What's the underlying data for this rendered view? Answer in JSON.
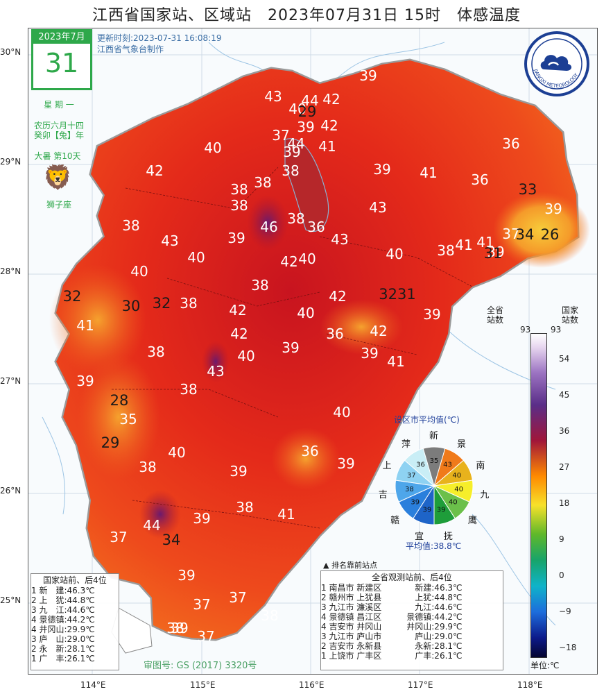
{
  "title": "江西省国家站、区域站　2023年07月31日 15时　体感温度",
  "update_time": "更新时刻:2023-07-31 16:08:19",
  "producer": "江西省气象台制作",
  "calendar": {
    "month": "2023年7月",
    "day": "31",
    "weekday": "星 期 一",
    "lunar1": "农历六月十四",
    "lunar2": "癸卯【兔】年",
    "solar_term": "大暑 第10天",
    "zodiac": "狮子座"
  },
  "logo_text": "JIANGXI METEOROLOGY",
  "lat_labels": [
    "30°N",
    "29°N",
    "28°N",
    "27°N",
    "26°N",
    "25°N"
  ],
  "lon_labels": [
    "114°E",
    "115°E",
    "116°E",
    "117°E",
    "118°E"
  ],
  "values": [
    {
      "v": "39",
      "c": "w"
    },
    {
      "v": "43",
      "c": "w"
    },
    {
      "v": "40",
      "c": "w"
    },
    {
      "v": "44",
      "c": "w"
    },
    {
      "v": "42",
      "c": "w"
    },
    {
      "v": "29",
      "c": "d"
    },
    {
      "v": "37",
      "c": "w"
    },
    {
      "v": "39",
      "c": "w"
    },
    {
      "v": "42",
      "c": "w"
    },
    {
      "v": "44",
      "c": "w"
    },
    {
      "v": "36",
      "c": "w"
    },
    {
      "v": "40",
      "c": "w"
    },
    {
      "v": "39",
      "c": "w"
    },
    {
      "v": "41",
      "c": "w"
    },
    {
      "v": "42",
      "c": "w"
    },
    {
      "v": "38",
      "c": "w"
    },
    {
      "v": "39",
      "c": "w"
    },
    {
      "v": "41",
      "c": "w"
    },
    {
      "v": "36",
      "c": "w"
    },
    {
      "v": "33",
      "c": "d"
    },
    {
      "v": "38",
      "c": "w"
    },
    {
      "v": "38",
      "c": "w"
    },
    {
      "v": "38",
      "c": "w"
    },
    {
      "v": "43",
      "c": "w"
    },
    {
      "v": "39",
      "c": "w"
    },
    {
      "v": "38",
      "c": "w"
    },
    {
      "v": "43",
      "c": "w"
    },
    {
      "v": "46",
      "c": "w"
    },
    {
      "v": "38",
      "c": "w"
    },
    {
      "v": "36",
      "c": "w"
    },
    {
      "v": "43",
      "c": "w"
    },
    {
      "v": "37",
      "c": "w"
    },
    {
      "v": "39",
      "c": "w"
    },
    {
      "v": "34",
      "c": "d"
    },
    {
      "v": "26",
      "c": "d"
    },
    {
      "v": "40",
      "c": "w"
    },
    {
      "v": "41",
      "c": "w"
    },
    {
      "v": "40",
      "c": "w"
    },
    {
      "v": "38",
      "c": "w"
    },
    {
      "v": "41",
      "c": "w"
    },
    {
      "v": "39",
      "c": "w"
    },
    {
      "v": "31",
      "c": "d"
    },
    {
      "v": "40",
      "c": "w"
    },
    {
      "v": "42",
      "c": "w"
    },
    {
      "v": "42",
      "c": "w"
    },
    {
      "v": "40",
      "c": "w"
    },
    {
      "v": "30",
      "c": "d"
    },
    {
      "v": "32",
      "c": "d"
    },
    {
      "v": "38",
      "c": "w"
    },
    {
      "v": "38",
      "c": "w"
    },
    {
      "v": "42",
      "c": "w"
    },
    {
      "v": "41",
      "c": "w"
    },
    {
      "v": "32",
      "c": "d"
    },
    {
      "v": "3231",
      "c": "d"
    },
    {
      "v": "42",
      "c": "w"
    },
    {
      "v": "40",
      "c": "w"
    },
    {
      "v": "36",
      "c": "w"
    },
    {
      "v": "39",
      "c": "w"
    },
    {
      "v": "38",
      "c": "w"
    },
    {
      "v": "42",
      "c": "w"
    },
    {
      "v": "40",
      "c": "w"
    },
    {
      "v": "39",
      "c": "w"
    },
    {
      "v": "41",
      "c": "w"
    },
    {
      "v": "39",
      "c": "w"
    },
    {
      "v": "43",
      "c": "w"
    },
    {
      "v": "39",
      "c": "w"
    },
    {
      "v": "28",
      "c": "d"
    },
    {
      "v": "38",
      "c": "w"
    },
    {
      "v": "35",
      "c": "w"
    },
    {
      "v": "29",
      "c": "d"
    },
    {
      "v": "40",
      "c": "w"
    },
    {
      "v": "36",
      "c": "w"
    },
    {
      "v": "40",
      "c": "w"
    },
    {
      "v": "38",
      "c": "w"
    },
    {
      "v": "39",
      "c": "w"
    },
    {
      "v": "39",
      "c": "w"
    },
    {
      "v": "44",
      "c": "w"
    },
    {
      "v": "39",
      "c": "w"
    },
    {
      "v": "38",
      "c": "w"
    },
    {
      "v": "37",
      "c": "w"
    },
    {
      "v": "34",
      "c": "d"
    },
    {
      "v": "41",
      "c": "w"
    },
    {
      "v": "39",
      "c": "w"
    },
    {
      "v": "37",
      "c": "w"
    },
    {
      "v": "37",
      "c": "w"
    },
    {
      "v": "38",
      "c": "w"
    },
    {
      "v": "38",
      "c": "w"
    },
    {
      "v": "39",
      "c": "w"
    },
    {
      "v": "37",
      "c": "w"
    }
  ],
  "counts": {
    "all_label": "全省\n站数",
    "all": "93",
    "nat_label": "国家\n站数",
    "nat": "93"
  },
  "colorbar_ticks": [
    "54",
    "45",
    "36",
    "27",
    "18",
    "9",
    "0",
    "−9",
    "−18"
  ],
  "colorbar_unit": "单位:℃",
  "pie": {
    "title": "设区市平均值(℃)",
    "avg": "平均值:38.8℃",
    "slices": [
      {
        "name": "景",
        "value": 43,
        "color": "#f07a1a"
      },
      {
        "name": "南",
        "value": 40,
        "color": "#e8b21c"
      },
      {
        "name": "九",
        "value": 40,
        "color": "#f6ee2a"
      },
      {
        "name": "鹰",
        "value": 40,
        "color": "#6bc04a"
      },
      {
        "name": "抚",
        "value": 39,
        "color": "#1e9d3a"
      },
      {
        "name": "宜",
        "value": 39,
        "color": "#1e64c8"
      },
      {
        "name": "赣",
        "value": 39,
        "color": "#2a7fdc"
      },
      {
        "name": "吉",
        "value": 38,
        "color": "#4ea6ea"
      },
      {
        "name": "上",
        "value": 37,
        "color": "#8ed2f2"
      },
      {
        "name": "萍",
        "value": 36,
        "color": "#c9eef6"
      },
      {
        "name": "新",
        "value": 35,
        "color": "#7c7c7c"
      }
    ]
  },
  "rank_note": "排名靠前站点",
  "national_rank": {
    "title": "国家站前、后4位",
    "rows": [
      "1 新　建:46.3℃",
      "2 上　犹:44.8℃",
      "3 九　江:44.6℃",
      "4 景德镇:44.2℃",
      "4 井冈山:29.9℃",
      "3 庐　山:29.0℃",
      "2 永　新:28.1℃",
      "1 广　丰:26.1℃"
    ]
  },
  "all_rank": {
    "title": "全省观测站前、后4位",
    "rows": [
      "1 南昌市 新建区　　　　新建:46.3℃",
      "2 赣州市 上犹县　　　　上犹:44.8℃",
      "3 九江市 濂溪区　　　　九江:44.6℃",
      "4 景德镇 昌江区　　　景德镇:44.2℃",
      "4 吉安市 井冈山　　　井冈山:29.9℃",
      "3 九江市 庐山市　　　　庐山:29.0℃",
      "2 吉安市 永新县　　　　永新:28.1℃",
      "1 上饶市 广丰区　　　　广丰:26.1℃"
    ]
  },
  "audit": "审图号: GS (2017) 3320号"
}
